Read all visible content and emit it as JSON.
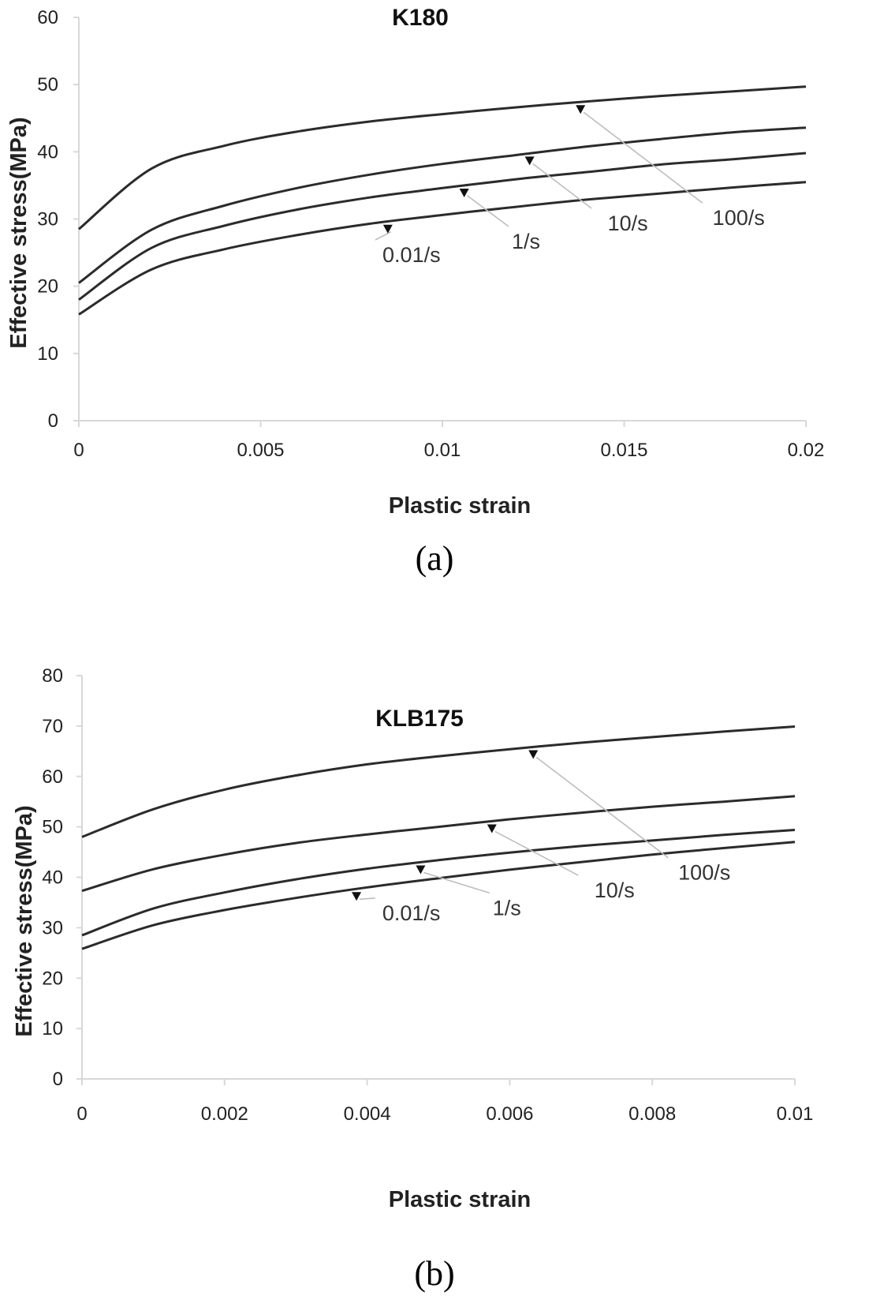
{
  "chart_data": [
    {
      "type": "line",
      "title": "K180",
      "xlabel": "Plastic strain",
      "ylabel": "Effective stress(MPa)",
      "xlim": [
        0,
        0.02
      ],
      "ylim": [
        0,
        60
      ],
      "xticks": [
        "0",
        "0.005",
        "0.01",
        "0.015",
        "0.02"
      ],
      "yticks": [
        "0",
        "10",
        "20",
        "30",
        "40",
        "50",
        "60"
      ],
      "grid": false,
      "caption": "(a)",
      "x": [
        0,
        0.002,
        0.004,
        0.006,
        0.008,
        0.01,
        0.012,
        0.014,
        0.016,
        0.018,
        0.02
      ],
      "series": [
        {
          "name": "0.01/s",
          "values": [
            15.8,
            22.5,
            25.5,
            27.6,
            29.3,
            30.6,
            31.8,
            32.9,
            33.8,
            34.7,
            35.5
          ],
          "annotation": {
            "label": "0.01/s",
            "arrow_x": 0.0085,
            "text_x": 0.00915,
            "text_y": 23.6
          }
        },
        {
          "name": "1/s",
          "values": [
            18.0,
            25.7,
            29.0,
            31.4,
            33.2,
            34.6,
            35.9,
            37.0,
            38.1,
            38.9,
            39.8
          ],
          "annotation": {
            "label": "1/s",
            "arrow_x": 0.0106,
            "text_x": 0.0123,
            "text_y": 25.6
          }
        },
        {
          "name": "10/s",
          "values": [
            20.5,
            28.4,
            32.0,
            34.6,
            36.6,
            38.2,
            39.5,
            40.8,
            41.9,
            42.9,
            43.6
          ],
          "annotation": {
            "label": "10/s",
            "arrow_x": 0.0124,
            "text_x": 0.0151,
            "text_y": 28.3
          }
        },
        {
          "name": "100/s",
          "values": [
            28.5,
            37.5,
            40.9,
            43.0,
            44.5,
            45.6,
            46.6,
            47.5,
            48.3,
            49.0,
            49.7
          ],
          "annotation": {
            "label": "100/s",
            "arrow_x": 0.0138,
            "text_x": 0.01815,
            "text_y": 29.1
          }
        }
      ]
    },
    {
      "type": "line",
      "title": "KLB175",
      "xlabel": "Plastic strain",
      "ylabel": "Effective stress(MPa)",
      "xlim": [
        0,
        0.01
      ],
      "ylim": [
        0,
        80
      ],
      "xticks": [
        "0",
        "0.002",
        "0.004",
        "0.006",
        "0.008",
        "0.01"
      ],
      "yticks": [
        "0",
        "10",
        "20",
        "30",
        "40",
        "50",
        "60",
        "70",
        "80"
      ],
      "grid": false,
      "caption": "(b)",
      "x": [
        0,
        0.001,
        0.002,
        0.003,
        0.004,
        0.005,
        0.006,
        0.007,
        0.008,
        0.009,
        0.01
      ],
      "series": [
        {
          "name": "0.01/s",
          "values": [
            25.8,
            30.5,
            33.5,
            35.9,
            38.0,
            39.8,
            41.5,
            43.0,
            44.5,
            45.8,
            47.0
          ],
          "annotation": {
            "label": "0.01/s",
            "arrow_x": 0.00385,
            "text_x": 0.00462,
            "text_y": 31.5
          }
        },
        {
          "name": "1/s",
          "values": [
            28.5,
            33.8,
            37.0,
            39.6,
            41.7,
            43.4,
            44.9,
            46.2,
            47.3,
            48.4,
            49.4
          ],
          "annotation": {
            "label": "1/s",
            "arrow_x": 0.00475,
            "text_x": 0.00596,
            "text_y": 32.5
          }
        },
        {
          "name": "10/s",
          "values": [
            37.3,
            41.6,
            44.5,
            46.8,
            48.5,
            50.0,
            51.5,
            52.8,
            54.0,
            55.0,
            56.1
          ],
          "annotation": {
            "label": "10/s",
            "arrow_x": 0.00575,
            "text_x": 0.00747,
            "text_y": 36.0
          }
        },
        {
          "name": "100/s",
          "values": [
            48.0,
            53.5,
            57.4,
            60.2,
            62.4,
            64.0,
            65.4,
            66.7,
            67.8,
            68.9,
            69.9
          ],
          "annotation": {
            "label": "100/s",
            "arrow_x": 0.00633,
            "text_x": 0.00873,
            "text_y": 39.5
          }
        }
      ]
    }
  ]
}
